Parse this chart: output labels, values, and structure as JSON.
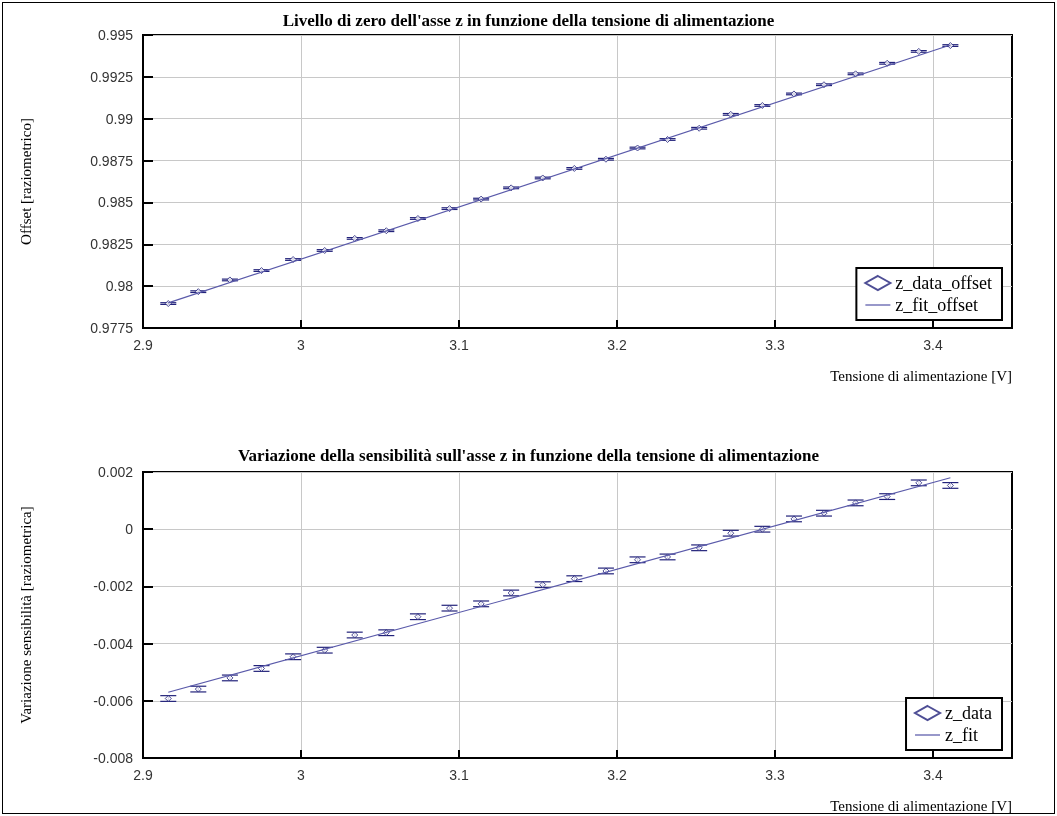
{
  "chart_data": [
    {
      "type": "scatter",
      "title": "Livello di zero dell'asse z in funzione della tensione di alimentazione",
      "xlabel": "Tensione di alimentazione [V]",
      "ylabel": "Offset [raziometrico]",
      "xlim": [
        2.9,
        3.45
      ],
      "xticks": [
        2.9,
        3,
        3.1,
        3.2,
        3.3,
        3.4
      ],
      "ylim": [
        0.9775,
        0.995
      ],
      "yticks": [
        0.9775,
        0.98,
        0.9825,
        0.985,
        0.9875,
        0.99,
        0.9925,
        0.995
      ],
      "grid": true,
      "legend": "bottom right",
      "series": [
        {
          "name": "z_data_offset",
          "marker": "diamond",
          "color": "#22227a",
          "x": [
            2.916,
            2.935,
            2.955,
            2.975,
            2.995,
            3.015,
            3.034,
            3.054,
            3.074,
            3.094,
            3.114,
            3.133,
            3.153,
            3.173,
            3.193,
            3.213,
            3.232,
            3.252,
            3.272,
            3.292,
            3.312,
            3.331,
            3.351,
            3.371,
            3.391,
            3.411
          ],
          "values": [
            0.97896,
            0.97967,
            0.98037,
            0.98093,
            0.98159,
            0.98213,
            0.98285,
            0.98331,
            0.98404,
            0.98463,
            0.9852,
            0.98587,
            0.98646,
            0.98703,
            0.98758,
            0.98825,
            0.98876,
            0.98943,
            0.99026,
            0.99079,
            0.99148,
            0.99203,
            0.99268,
            0.99331,
            0.99402,
            0.99437
          ],
          "errors": [
            5e-05,
            5e-05,
            5e-05,
            5e-05,
            5e-05,
            5e-05,
            5e-05,
            5e-05,
            5e-05,
            5e-05,
            5e-05,
            5e-05,
            5e-05,
            5e-05,
            5e-05,
            5e-05,
            5e-05,
            5e-05,
            5e-05,
            5e-05,
            5e-05,
            5e-05,
            5e-05,
            5e-05,
            5e-05,
            5e-05
          ]
        },
        {
          "name": "z_fit_offset",
          "type": "line",
          "marker": "none",
          "color": "#5a5aaa",
          "x": [
            2.916,
            3.411
          ],
          "values": [
            0.979,
            0.9944
          ]
        }
      ]
    },
    {
      "type": "scatter",
      "title": "Variazione della sensibilità sull'asse z in funzione della tensione di alimentazione",
      "xlabel": "Tensione di alimentazione [V]",
      "ylabel": "Variazione sensibilità [raziometrica]",
      "xlim": [
        2.9,
        3.45
      ],
      "xticks": [
        2.9,
        3,
        3.1,
        3.2,
        3.3,
        3.4
      ],
      "ylim": [
        -0.008,
        0.002
      ],
      "yticks": [
        -0.008,
        -0.006,
        -0.004,
        -0.002,
        0,
        0.002
      ],
      "grid": true,
      "legend": "bottom right",
      "series": [
        {
          "name": "z_data",
          "marker": "diamond",
          "color": "#22227a",
          "x": [
            2.916,
            2.935,
            2.955,
            2.975,
            2.995,
            3.015,
            3.034,
            3.054,
            3.074,
            3.094,
            3.114,
            3.133,
            3.153,
            3.173,
            3.193,
            3.213,
            3.232,
            3.252,
            3.272,
            3.292,
            3.312,
            3.331,
            3.351,
            3.371,
            3.391,
            3.411
          ],
          "values": [
            -0.00592,
            -0.00559,
            -0.0052,
            -0.00487,
            -0.00446,
            -0.00423,
            -0.0037,
            -0.00362,
            -0.00306,
            -0.00276,
            -0.00261,
            -0.00223,
            -0.00194,
            -0.00173,
            -0.00146,
            -0.00107,
            -0.00097,
            -0.00065,
            -0.00014,
            0,
            0.00036,
            0.00056,
            0.00092,
            0.00114,
            0.00162,
            0.00153
          ],
          "errors": [
            0.0001,
            0.0001,
            0.0001,
            0.0001,
            0.0001,
            0.0001,
            0.0001,
            0.0001,
            0.0001,
            0.0001,
            0.0001,
            0.0001,
            0.0001,
            0.0001,
            0.0001,
            0.0001,
            0.0001,
            0.0001,
            0.0001,
            0.0001,
            0.0001,
            0.0001,
            0.0001,
            0.0001,
            0.0001,
            0.0001
          ]
        },
        {
          "name": "z_fit",
          "type": "line",
          "marker": "none",
          "color": "#5a5aaa",
          "x": [
            2.916,
            3.411
          ],
          "values": [
            -0.0057,
            0.0018
          ]
        }
      ]
    }
  ]
}
